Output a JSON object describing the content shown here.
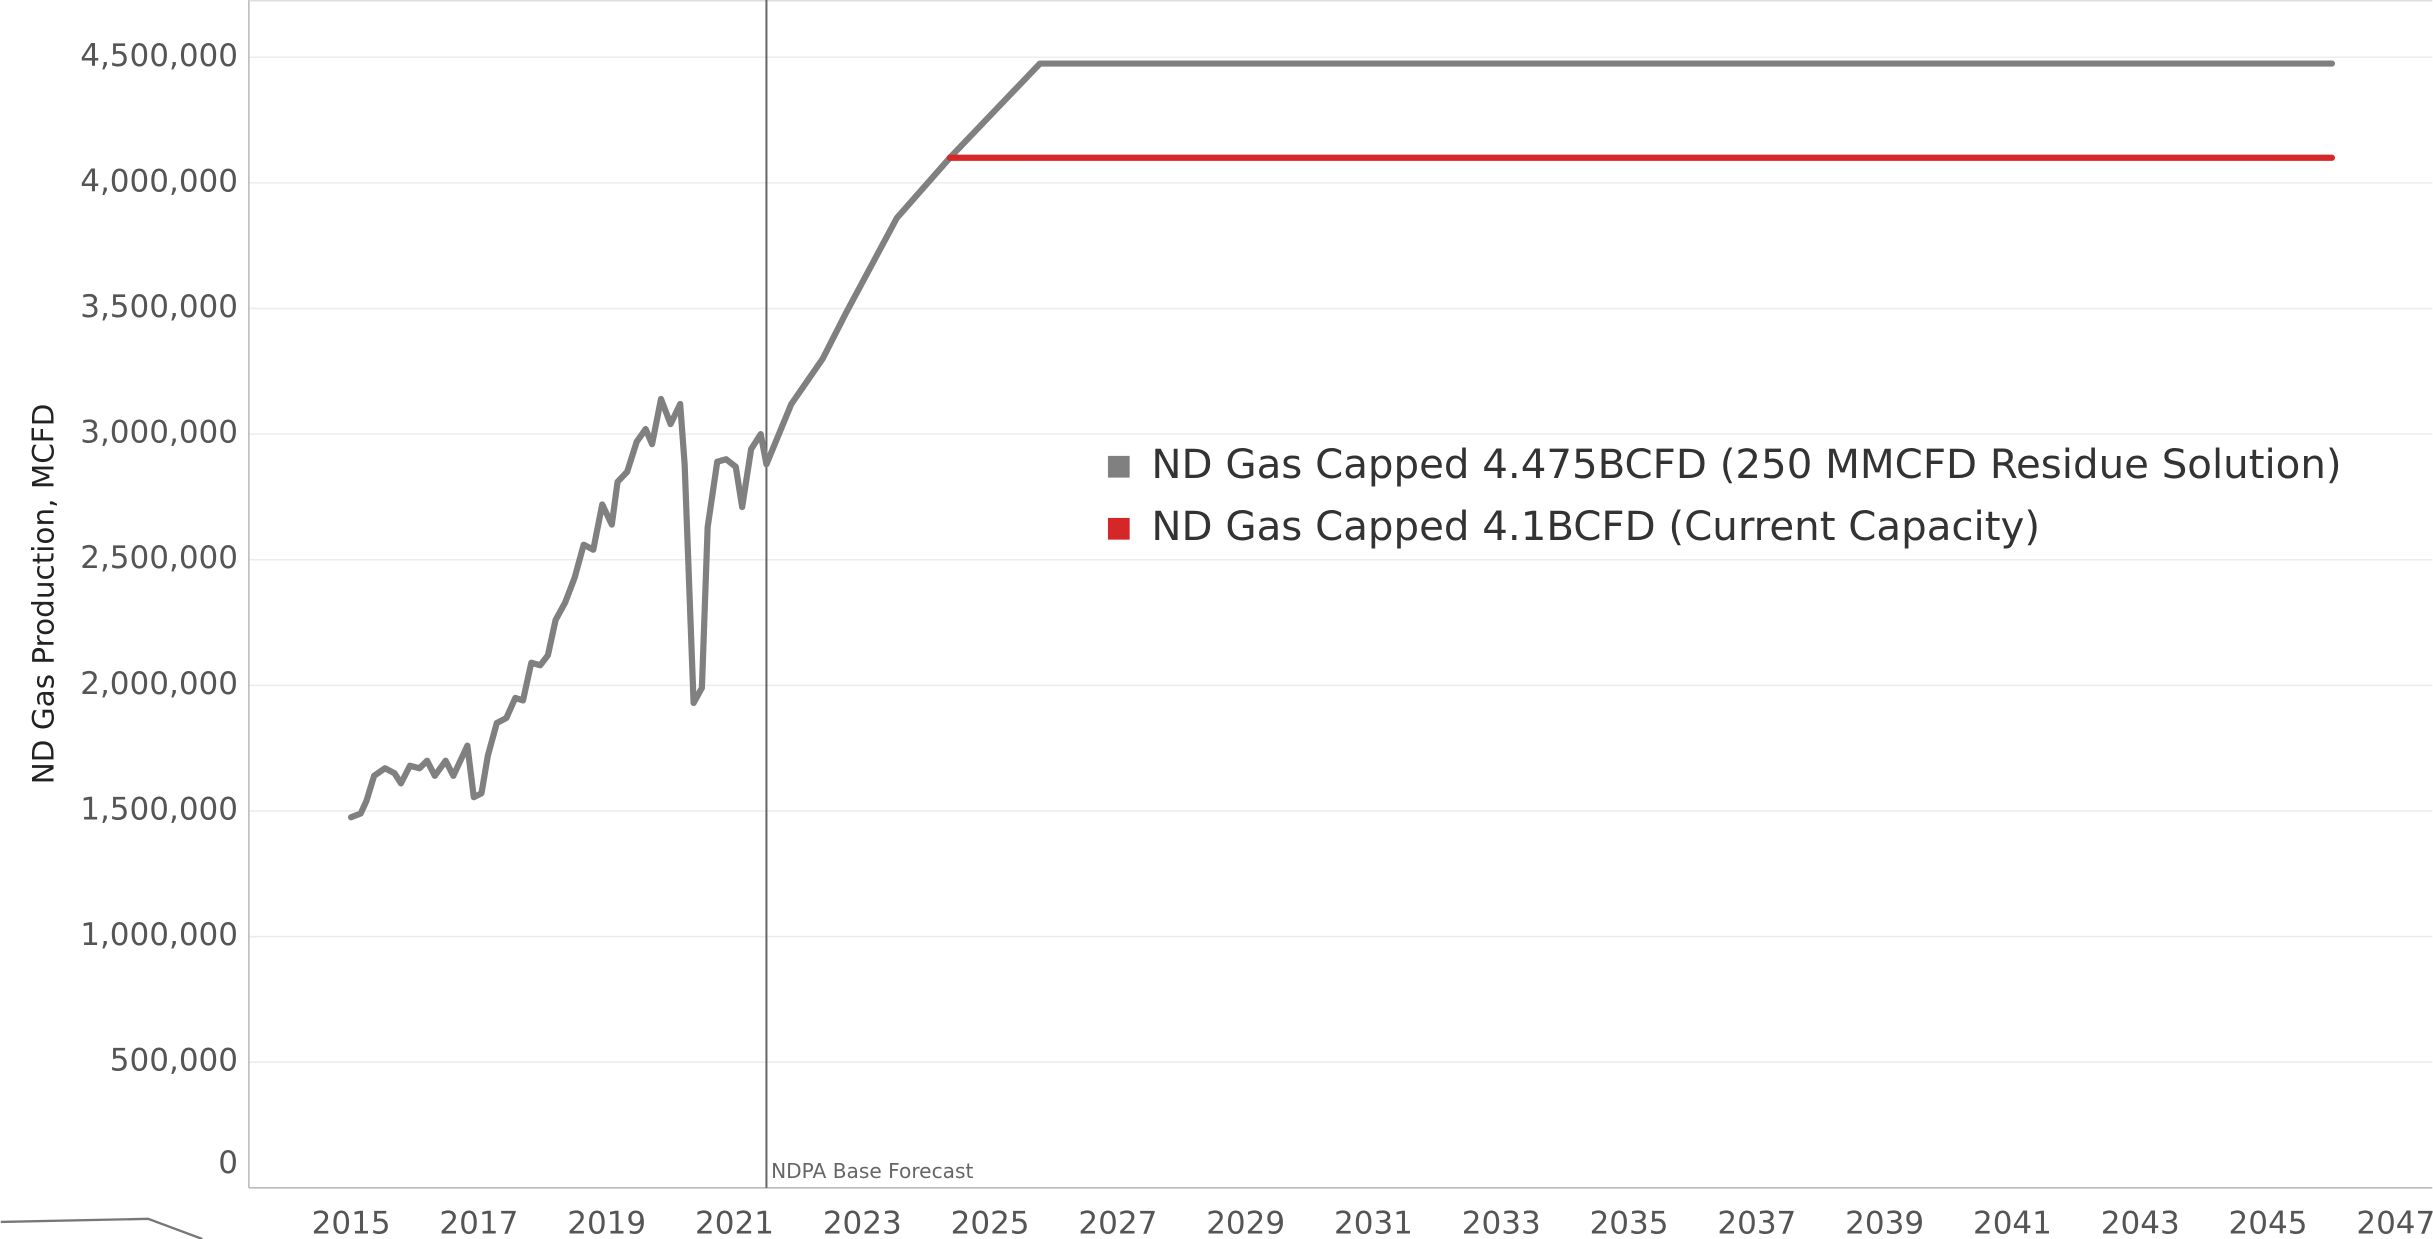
{
  "chart_data": {
    "type": "line",
    "y_label": "ND Gas Production, MCFD",
    "xlim": [
      2013.4,
      2047.57
    ],
    "xticks": [
      2015,
      2017,
      2019,
      2021,
      2023,
      2025,
      2027,
      2029,
      2031,
      2033,
      2035,
      2037,
      2039,
      2041,
      2043,
      2045,
      2047
    ],
    "ylim": [
      0,
      4728000
    ],
    "yticks": [
      {
        "value": 0,
        "label": "0"
      },
      {
        "value": 500000,
        "label": "500,000"
      },
      {
        "value": 1000000,
        "label": "1,000,000"
      },
      {
        "value": 1500000,
        "label": "1,500,000"
      },
      {
        "value": 2000000,
        "label": "2,000,000"
      },
      {
        "value": 2500000,
        "label": "2,500,000"
      },
      {
        "value": 3000000,
        "label": "3,000,000"
      },
      {
        "value": 3500000,
        "label": "3,500,000"
      },
      {
        "value": 4000000,
        "label": "4,000,000"
      },
      {
        "value": 4500000,
        "label": "4,500,000"
      }
    ],
    "grid": true,
    "reference_line": {
      "x": 2021.5,
      "label": "NDPA Base Forecast",
      "color": "#666666"
    },
    "series": [
      {
        "name": "ND Gas Capped 4.475BCFD (250 MMCFD Residue Solution)",
        "color": "#808080",
        "x": [
          2015.0,
          2015.15,
          2015.24,
          2015.36,
          2015.53,
          2015.68,
          2015.78,
          2015.92,
          2016.07,
          2016.19,
          2016.31,
          2016.48,
          2016.6,
          2016.82,
          2016.92,
          2017.04,
          2017.14,
          2017.28,
          2017.43,
          2017.57,
          2017.69,
          2017.82,
          2017.96,
          2018.08,
          2018.2,
          2018.35,
          2018.5,
          2018.64,
          2018.79,
          2018.93,
          2019.08,
          2019.17,
          2019.32,
          2019.47,
          2019.61,
          2019.71,
          2019.85,
          2020.0,
          2020.15,
          2020.22,
          2020.36,
          2020.49,
          2020.58,
          2020.73,
          2020.87,
          2021.02,
          2021.12,
          2021.26,
          2021.41,
          2021.5,
          2021.89,
          2022.38,
          2022.74,
          2023.54,
          2024.37,
          2025.78,
          2046.0
        ],
        "values": [
          1475000,
          1490000,
          1540000,
          1640000,
          1670000,
          1650000,
          1610000,
          1680000,
          1670000,
          1700000,
          1640000,
          1700000,
          1640000,
          1760000,
          1555000,
          1570000,
          1720000,
          1850000,
          1870000,
          1950000,
          1940000,
          2090000,
          2080000,
          2120000,
          2260000,
          2330000,
          2430000,
          2560000,
          2540000,
          2720000,
          2640000,
          2810000,
          2850000,
          2970000,
          3020000,
          2960000,
          3140000,
          3040000,
          3120000,
          2880000,
          1930000,
          1990000,
          2630000,
          2890000,
          2900000,
          2870000,
          2710000,
          2940000,
          3000000,
          2880000,
          3120000,
          3300000,
          3480000,
          3860000,
          4100000,
          4475000,
          4475000
        ]
      },
      {
        "name": "ND Gas Capped 4.1BCFD (Current Capacity)",
        "color": "#d62728",
        "x": [
          2024.37,
          2046.0
        ],
        "values": [
          4100000,
          4100000
        ]
      }
    ]
  }
}
